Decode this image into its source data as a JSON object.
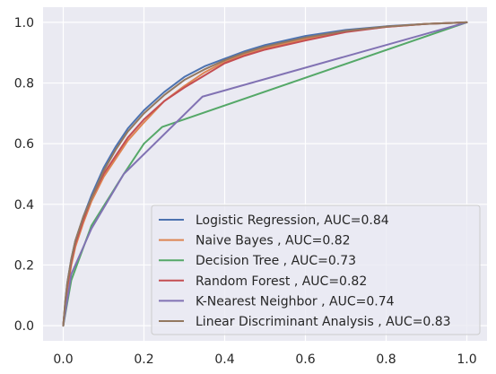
{
  "chart_data": {
    "type": "line",
    "title": "",
    "xlabel": "",
    "ylabel": "",
    "xlim": [
      -0.05,
      1.05
    ],
    "ylim": [
      -0.05,
      1.05
    ],
    "x_ticks": [
      0.0,
      0.2,
      0.4,
      0.6,
      0.8,
      1.0
    ],
    "y_ticks": [
      0.0,
      0.2,
      0.4,
      0.6,
      0.8,
      1.0
    ],
    "x_tick_labels": [
      "0.0",
      "0.2",
      "0.4",
      "0.6",
      "0.8",
      "1.0"
    ],
    "y_tick_labels": [
      "0.0",
      "0.2",
      "0.4",
      "0.6",
      "0.8",
      "1.0"
    ],
    "grid": true,
    "legend_position": "lower-right",
    "background": "#eaeaf2",
    "series": [
      {
        "name": "Logistic Regression, AUC=0.84",
        "color": "#4c72b0",
        "points": [
          [
            0,
            0
          ],
          [
            0.005,
            0.08
          ],
          [
            0.01,
            0.14
          ],
          [
            0.02,
            0.22
          ],
          [
            0.03,
            0.28
          ],
          [
            0.05,
            0.36
          ],
          [
            0.07,
            0.43
          ],
          [
            0.1,
            0.52
          ],
          [
            0.13,
            0.59
          ],
          [
            0.16,
            0.65
          ],
          [
            0.2,
            0.71
          ],
          [
            0.25,
            0.77
          ],
          [
            0.3,
            0.82
          ],
          [
            0.35,
            0.855
          ],
          [
            0.4,
            0.88
          ],
          [
            0.45,
            0.905
          ],
          [
            0.5,
            0.925
          ],
          [
            0.6,
            0.955
          ],
          [
            0.7,
            0.975
          ],
          [
            0.8,
            0.987
          ],
          [
            0.9,
            0.995
          ],
          [
            1,
            1
          ]
        ]
      },
      {
        "name": "Naive Bayes , AUC=0.82",
        "color": "#dd8452",
        "points": [
          [
            0,
            0
          ],
          [
            0.005,
            0.07
          ],
          [
            0.01,
            0.12
          ],
          [
            0.02,
            0.2
          ],
          [
            0.03,
            0.26
          ],
          [
            0.05,
            0.34
          ],
          [
            0.07,
            0.41
          ],
          [
            0.1,
            0.49
          ],
          [
            0.13,
            0.55
          ],
          [
            0.16,
            0.61
          ],
          [
            0.2,
            0.67
          ],
          [
            0.25,
            0.74
          ],
          [
            0.3,
            0.79
          ],
          [
            0.35,
            0.835
          ],
          [
            0.4,
            0.87
          ],
          [
            0.45,
            0.895
          ],
          [
            0.5,
            0.915
          ],
          [
            0.6,
            0.945
          ],
          [
            0.7,
            0.97
          ],
          [
            0.8,
            0.985
          ],
          [
            0.9,
            0.995
          ],
          [
            1,
            1
          ]
        ]
      },
      {
        "name": "Decision Tree , AUC=0.73",
        "color": "#55a868",
        "points": [
          [
            0,
            0
          ],
          [
            0.02,
            0.15
          ],
          [
            0.07,
            0.33
          ],
          [
            0.15,
            0.5
          ],
          [
            0.2,
            0.6
          ],
          [
            0.245,
            0.655
          ],
          [
            1,
            1
          ]
        ]
      },
      {
        "name": "Random Forest , AUC=0.82",
        "color": "#c44e52",
        "points": [
          [
            0,
            0
          ],
          [
            0.005,
            0.07
          ],
          [
            0.01,
            0.13
          ],
          [
            0.02,
            0.21
          ],
          [
            0.03,
            0.27
          ],
          [
            0.05,
            0.35
          ],
          [
            0.07,
            0.42
          ],
          [
            0.1,
            0.5
          ],
          [
            0.13,
            0.56
          ],
          [
            0.16,
            0.62
          ],
          [
            0.2,
            0.68
          ],
          [
            0.25,
            0.74
          ],
          [
            0.3,
            0.785
          ],
          [
            0.35,
            0.825
          ],
          [
            0.4,
            0.865
          ],
          [
            0.45,
            0.89
          ],
          [
            0.5,
            0.91
          ],
          [
            0.6,
            0.94
          ],
          [
            0.7,
            0.968
          ],
          [
            0.8,
            0.985
          ],
          [
            0.9,
            0.995
          ],
          [
            1,
            1
          ]
        ]
      },
      {
        "name": "K-Nearest Neighbor , AUC=0.74",
        "color": "#8172b3",
        "points": [
          [
            0,
            0
          ],
          [
            0.02,
            0.17
          ],
          [
            0.07,
            0.32
          ],
          [
            0.15,
            0.5
          ],
          [
            0.345,
            0.755
          ],
          [
            1,
            1
          ]
        ]
      },
      {
        "name": "Linear Discriminant Analysis , AUC=0.83",
        "color": "#937860",
        "points": [
          [
            0,
            0
          ],
          [
            0.005,
            0.08
          ],
          [
            0.01,
            0.14
          ],
          [
            0.02,
            0.22
          ],
          [
            0.03,
            0.28
          ],
          [
            0.05,
            0.36
          ],
          [
            0.07,
            0.42
          ],
          [
            0.1,
            0.51
          ],
          [
            0.13,
            0.58
          ],
          [
            0.16,
            0.64
          ],
          [
            0.2,
            0.7
          ],
          [
            0.25,
            0.76
          ],
          [
            0.3,
            0.81
          ],
          [
            0.35,
            0.845
          ],
          [
            0.4,
            0.875
          ],
          [
            0.45,
            0.9
          ],
          [
            0.5,
            0.92
          ],
          [
            0.6,
            0.95
          ],
          [
            0.7,
            0.972
          ],
          [
            0.8,
            0.986
          ],
          [
            0.9,
            0.995
          ],
          [
            1,
            1
          ]
        ]
      }
    ]
  }
}
